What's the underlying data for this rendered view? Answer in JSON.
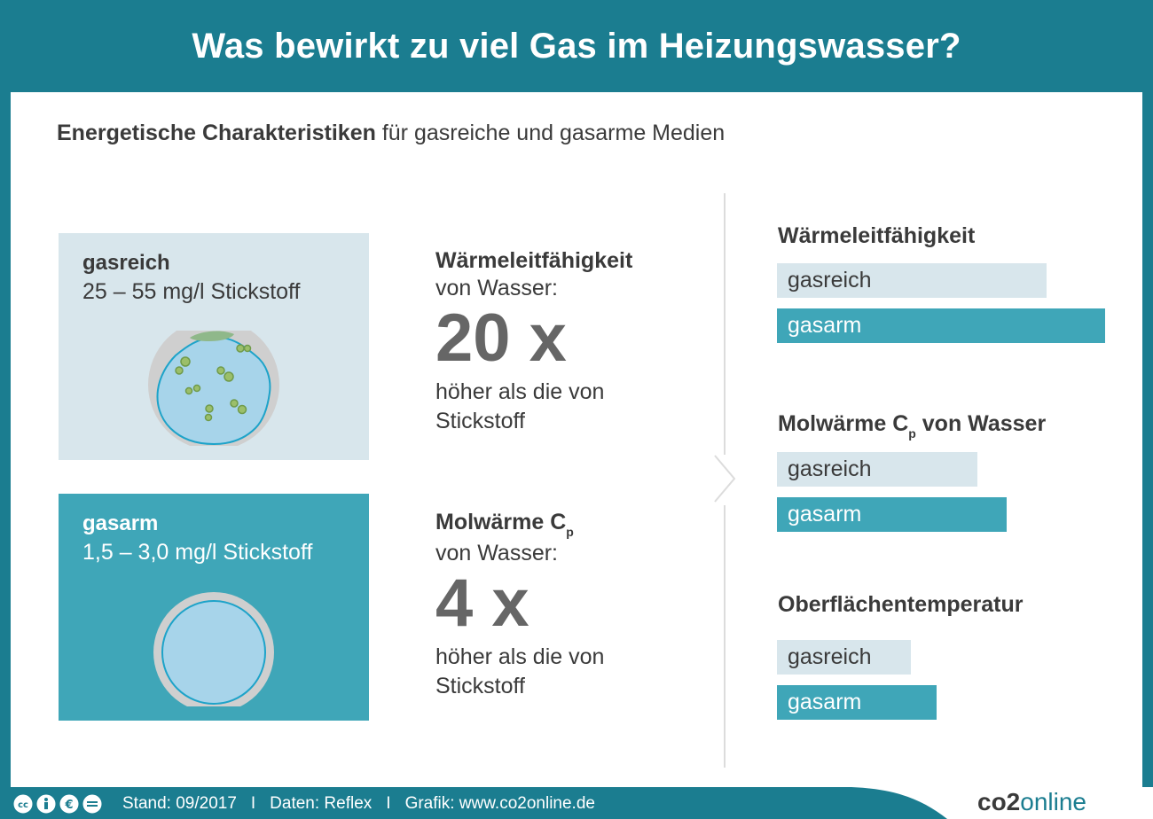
{
  "title": "Was bewirkt zu viel Gas im Heizungswasser?",
  "subtitle": {
    "bold": "Energetische Charakteristiken",
    "rest": " für gasreiche und gasarme Medien"
  },
  "panels": [
    {
      "name": "gasreich",
      "value": "25 – 55 mg/l Stickstoff",
      "icon": "gas-rich-water-icon"
    },
    {
      "name": "gasarm",
      "value": "1,5 – 3,0 mg/l Stickstoff",
      "icon": "gas-poor-water-icon"
    }
  ],
  "facts": [
    {
      "heading": "Wärmeleitfähigkeit",
      "sub": "von Wasser:",
      "big": "20 x",
      "desc": "höher als die von Stickstoff"
    },
    {
      "heading": "Molwärme C",
      "heading_sub": "p",
      "sub": "von Wasser:",
      "big": "4 x",
      "desc": "höher als die von Stickstoff"
    }
  ],
  "metrics": [
    {
      "title": "Wärmeleitfähigkeit",
      "rich_label": "gasreich",
      "poor_label": "gasarm",
      "rich_value": 304,
      "poor_value": 370
    },
    {
      "title_prefix": "Molwärme C",
      "title_sub": "p",
      "title_suffix": " von Wasser",
      "rich_label": "gasreich",
      "poor_label": "gasarm",
      "rich_value": 226,
      "poor_value": 259
    },
    {
      "title": "Oberflächentemperatur",
      "rich_label": "gasreich",
      "poor_label": "gasarm",
      "rich_value": 151,
      "poor_value": 180
    }
  ],
  "footer": {
    "stand": "Stand: 09/2017",
    "daten": "Daten: Reflex",
    "grafik": "Grafik: www.co2online.de",
    "sep": "I",
    "logo_a": "co2",
    "logo_b": "online"
  },
  "colors": {
    "primary": "#1b7d90",
    "teal": "#3fa6b8",
    "light": "#d8e6ec",
    "text": "#3a3a3a"
  }
}
